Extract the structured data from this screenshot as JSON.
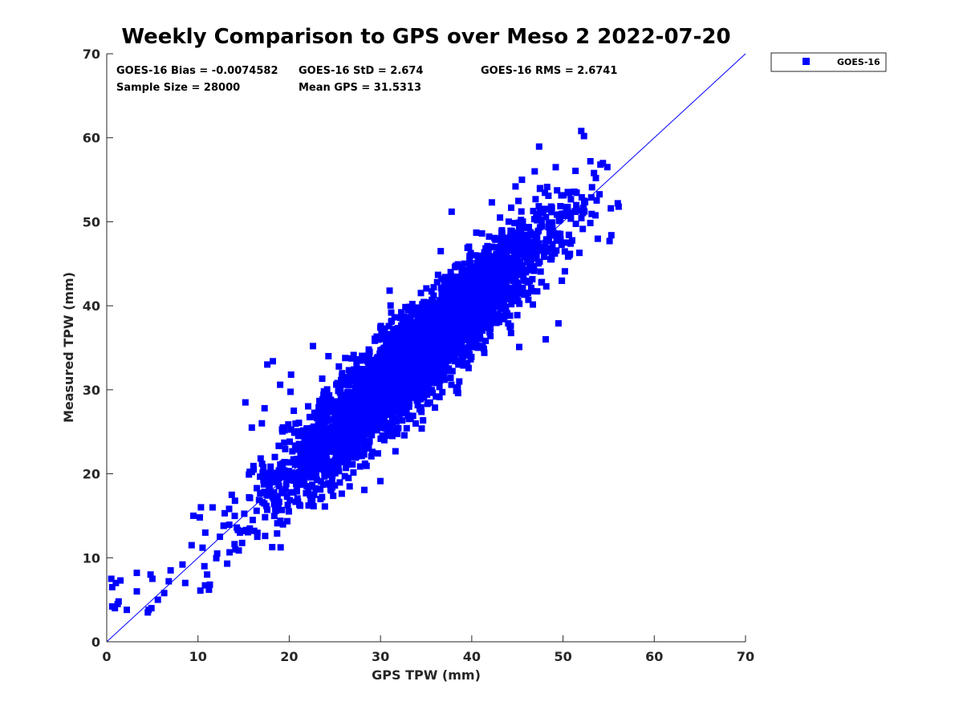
{
  "chart_data": {
    "type": "scatter",
    "title": "Weekly Comparison to GPS over Meso 2 2022-07-20",
    "xlabel": "GPS TPW (mm)",
    "ylabel": "Measured TPW (mm)",
    "xlim": [
      0,
      70
    ],
    "ylim": [
      0,
      70
    ],
    "xticks": [
      "0",
      "10",
      "20",
      "30",
      "40",
      "50",
      "60",
      "70"
    ],
    "yticks": [
      "0",
      "10",
      "20",
      "30",
      "40",
      "50",
      "60",
      "70"
    ],
    "grid": false,
    "legend_position": "outside-top-right",
    "reference_line": {
      "from": [
        0,
        0
      ],
      "to": [
        70,
        70
      ],
      "color": "#0000ff"
    },
    "stats": {
      "bias": "GOES-16 Bias = -0.0074582",
      "std": "GOES-16 StD = 2.674",
      "rms": "GOES-16 RMS = 2.6741",
      "sample_size": "Sample Size = 28000",
      "mean_gps": "Mean GPS = 31.5313"
    },
    "series": [
      {
        "name": "GOES-16",
        "color": "#0000ff",
        "marker": "square",
        "cloud": {
          "x_center": 34,
          "x_spread": 7,
          "slope": 1.0,
          "intercept": 0,
          "noise": 2.7,
          "x_min": 10,
          "x_max": 56
        },
        "x": [
          0.5,
          0.6,
          1.0,
          1.2,
          1.5,
          0.6,
          0.9,
          1.3,
          2.2,
          3.3,
          3.3,
          4.5,
          4.6,
          4.9,
          5.0,
          4.8,
          5.6,
          6.3,
          6.8,
          7.0,
          8.3,
          8.6,
          9.3,
          9.5,
          10.2,
          10.5,
          10.8,
          11.0,
          11.2,
          10.7,
          11.3,
          11.6,
          12.1,
          12.4,
          12.8,
          13.2,
          13.7,
          14.1,
          14.6,
          15.2,
          15.9,
          16.1,
          16.5,
          17.0,
          17.3,
          15.6,
          16.0,
          17.6,
          18.2,
          19.0,
          19.8,
          20.5,
          21.2,
          22.0,
          20.2,
          22.6,
          24.3,
          25.0,
          26.4,
          27.1,
          28.2,
          29.3,
          31.0,
          30.1,
          36.6,
          37.8,
          39.2,
          40.5,
          42.2,
          43.1,
          44.8,
          45.5,
          46.9,
          47.5,
          48.4,
          49.2,
          52.0,
          52.3,
          53.0,
          53.6,
          54.1,
          55.3,
          56.1,
          56.0,
          55.1,
          51.8,
          50.7,
          49.5,
          48.1,
          45.2,
          44.0,
          42.9,
          39.1,
          38.5,
          35.1,
          33.3,
          31.3,
          29.1,
          28.3,
          26.5,
          24.6,
          23.9
        ],
        "y": [
          7.5,
          4.2,
          7.0,
          4.5,
          7.3,
          6.5,
          4.0,
          4.8,
          3.8,
          8.2,
          6.0,
          3.5,
          3.8,
          4.0,
          7.5,
          8.0,
          5.0,
          5.8,
          7.2,
          8.5,
          9.2,
          7.0,
          11.5,
          15.0,
          14.8,
          11.2,
          13.0,
          8.0,
          6.2,
          9.0,
          6.8,
          16.0,
          10.5,
          12.5,
          13.8,
          9.3,
          17.5,
          11.0,
          13.0,
          28.5,
          25.5,
          20.5,
          12.5,
          26.0,
          27.8,
          17.2,
          14.5,
          33.0,
          33.4,
          30.6,
          20.3,
          27.5,
          16.2,
          25.0,
          31.8,
          35.2,
          34.0,
          18.6,
          23.8,
          26.9,
          22.3,
          25.3,
          41.8,
          37.1,
          46.5,
          51.2,
          44.0,
          48.7,
          52.3,
          50.5,
          54.2,
          55.0,
          56.0,
          54.0,
          53.1,
          56.5,
          60.8,
          60.2,
          57.2,
          55.2,
          56.8,
          48.4,
          51.8,
          52.2,
          47.7,
          46.3,
          46.0,
          37.9,
          36.0,
          35.1,
          37.9,
          39.0,
          33.0,
          29.6,
          30.3,
          26.6,
          24.5,
          22.6,
          21.2,
          19.5,
          18.0,
          16.1
        ]
      }
    ]
  }
}
